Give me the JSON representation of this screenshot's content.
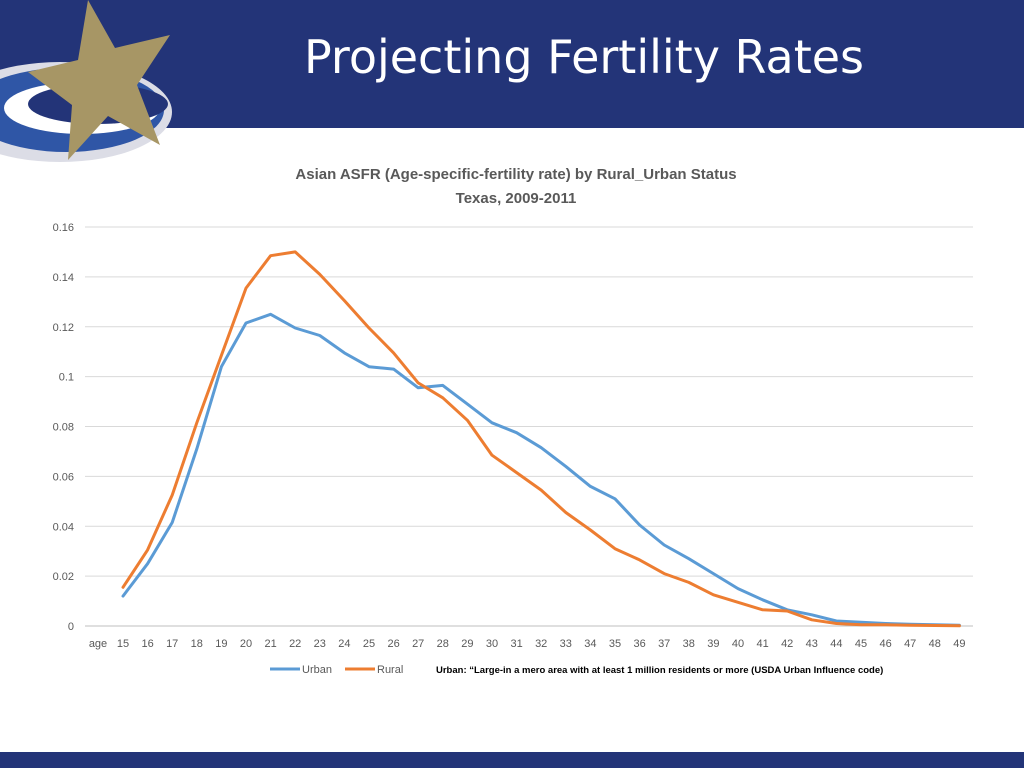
{
  "slide": {
    "title": "Projecting Fertility Rates",
    "colors": {
      "header_bg": "#233478",
      "logo_gold": "#a79665",
      "logo_blue": "#2f56a6"
    }
  },
  "chart_data": {
    "type": "line",
    "title": "Asian ASFR (Age-specific-fertility rate) by Rural_Urban Status",
    "subtitle": "Texas, 2009-2011",
    "xlabel": "age",
    "ylabel": "",
    "categories": [
      "15",
      "16",
      "17",
      "18",
      "19",
      "20",
      "21",
      "22",
      "23",
      "24",
      "25",
      "26",
      "27",
      "28",
      "29",
      "30",
      "31",
      "32",
      "33",
      "34",
      "35",
      "36",
      "37",
      "38",
      "39",
      "40",
      "41",
      "42",
      "43",
      "44",
      "45",
      "46",
      "47",
      "48",
      "49"
    ],
    "yticks": [
      "0",
      "0.02",
      "0.04",
      "0.06",
      "0.08",
      "0.1",
      "0.12",
      "0.14",
      "0.16"
    ],
    "ylim": [
      0,
      0.16
    ],
    "grid": true,
    "legend_position": "bottom-left",
    "series": [
      {
        "name": "Urban",
        "color": "#5b9bd5",
        "values": [
          0.012,
          0.025,
          0.0415,
          0.071,
          0.104,
          0.1215,
          0.125,
          0.1195,
          0.1165,
          0.1095,
          0.104,
          0.103,
          0.0955,
          0.0965,
          0.089,
          0.0815,
          0.0775,
          0.0715,
          0.064,
          0.056,
          0.051,
          0.0405,
          0.0325,
          0.027,
          0.021,
          0.015,
          0.0105,
          0.0065,
          0.0045,
          0.002,
          0.0015,
          0.001,
          0.0007,
          0.0005,
          0.0003
        ]
      },
      {
        "name": "Rural",
        "color": "#ed7d31",
        "values": [
          0.0155,
          0.0305,
          0.0525,
          0.0815,
          0.1085,
          0.1355,
          0.1485,
          0.15,
          0.141,
          0.1305,
          0.1195,
          0.1095,
          0.0975,
          0.0915,
          0.0825,
          0.0685,
          0.0615,
          0.0545,
          0.0455,
          0.0385,
          0.031,
          0.0265,
          0.021,
          0.0175,
          0.0125,
          0.0095,
          0.0065,
          0.006,
          0.0025,
          0.001,
          0.0005,
          0.0005,
          0.0003,
          0.0002,
          0.0001
        ]
      }
    ],
    "annotation": "Urban: “Large-in a mero area with at least 1 million residents or more (USDA Urban Influence code)"
  }
}
